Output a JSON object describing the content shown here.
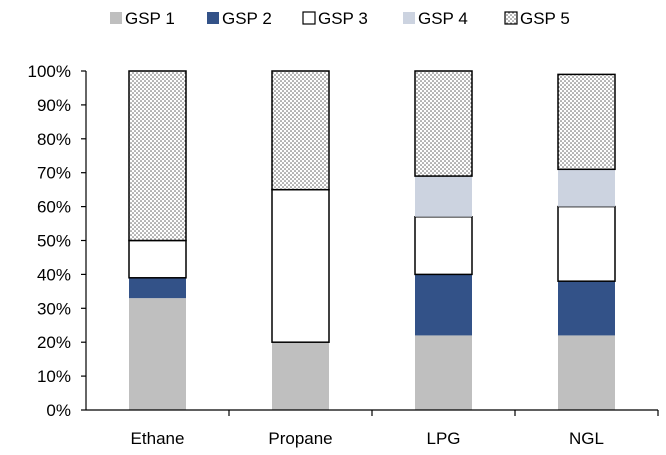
{
  "chart_data": {
    "type": "bar",
    "stacked": "percent",
    "categories": [
      "Ethane",
      "Propane",
      "LPG",
      "NGL"
    ],
    "series": [
      {
        "name": "GSP 1",
        "values": [
          33,
          20,
          22,
          22
        ],
        "color": "#BFBFBF",
        "pattern": "solid"
      },
      {
        "name": "GSP 2",
        "values": [
          6,
          0,
          18,
          16
        ],
        "color": "#335288",
        "pattern": "solid"
      },
      {
        "name": "GSP 3",
        "values": [
          11,
          45,
          17,
          22
        ],
        "color": "#FFFFFF",
        "pattern": "solid"
      },
      {
        "name": "GSP 4",
        "values": [
          0,
          0,
          12,
          11
        ],
        "color": "#CCD3E0",
        "pattern": "solid"
      },
      {
        "name": "GSP 5",
        "values": [
          50,
          35,
          31,
          28
        ],
        "color": "#FFFFFF",
        "pattern": "dotted"
      }
    ],
    "y_ticks": [
      "0%",
      "10%",
      "20%",
      "30%",
      "40%",
      "50%",
      "60%",
      "70%",
      "80%",
      "90%",
      "100%"
    ],
    "ylim": [
      0,
      100
    ],
    "legend_position": "top",
    "grid": false
  }
}
